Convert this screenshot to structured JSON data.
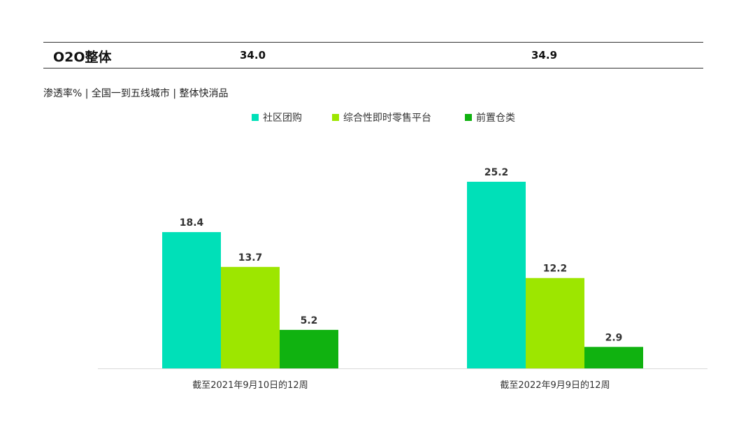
{
  "summary": {
    "label": "O2O整体",
    "values": [
      "34.0",
      "34.9"
    ]
  },
  "subtitle": "渗透率% | 全国一到五线城市 | 整体快消品",
  "chart_data": {
    "type": "bar",
    "categories": [
      "截至2021年9月10日的12周",
      "截至2022年9月9日的12周"
    ],
    "series": [
      {
        "name": "社区团购",
        "values": [
          18.4,
          25.2
        ],
        "color": "#00e0b8"
      },
      {
        "name": "综合性即时零售平台",
        "values": [
          13.7,
          12.2
        ],
        "color": "#9de600"
      },
      {
        "name": "前置仓类",
        "values": [
          5.2,
          2.9
        ],
        "color": "#10b210"
      }
    ],
    "value_labels": [
      [
        "18.4",
        "25.2"
      ],
      [
        "13.7",
        "12.2"
      ],
      [
        "5.2",
        "2.9"
      ]
    ],
    "ylim": [
      0,
      30
    ],
    "legend": "top-center",
    "grid": false
  }
}
